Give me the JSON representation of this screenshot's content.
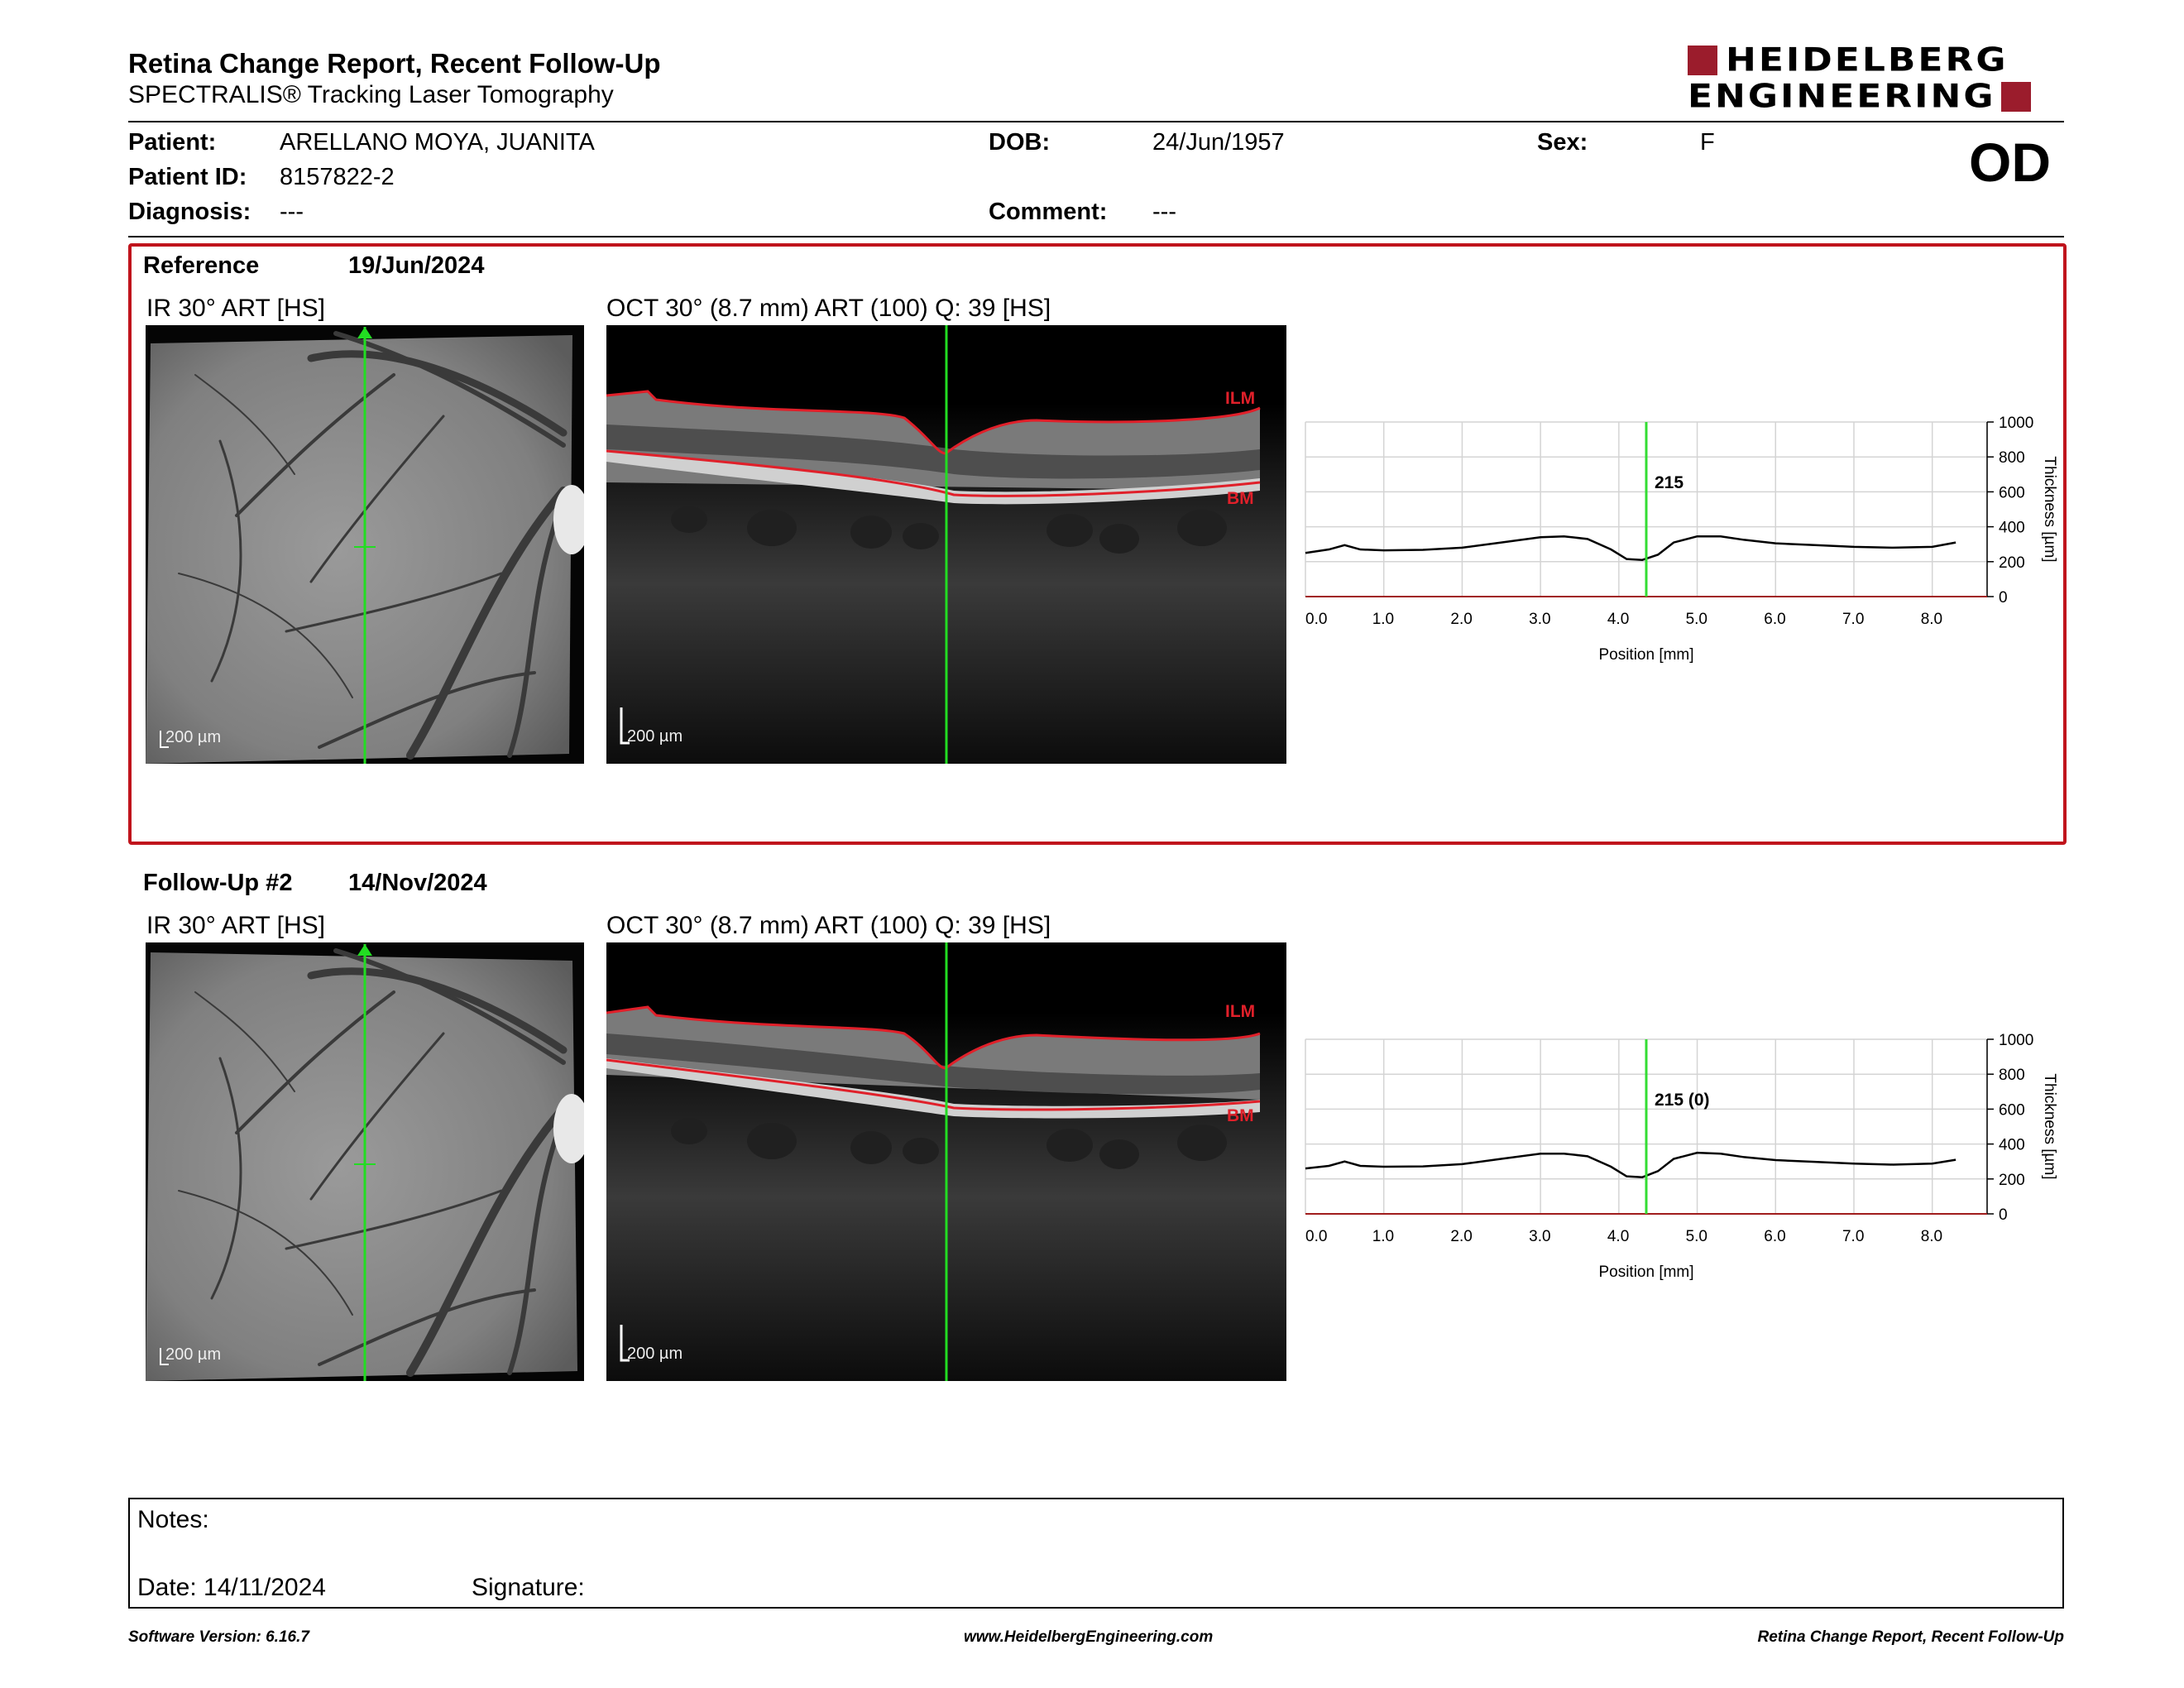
{
  "header": {
    "title": "Retina Change Report, Recent Follow-Up",
    "subtitle": "SPECTRALIS® Tracking Laser Tomography",
    "logo_line1": "HEIDELBERG",
    "logo_line2": "ENGINEERING",
    "brand_color": "#9b1c2c"
  },
  "patient": {
    "patient_label": "Patient:",
    "patient_value": "ARELLANO MOYA, JUANITA",
    "id_label": "Patient ID:",
    "id_value": "8157822-2",
    "diagnosis_label": "Diagnosis:",
    "diagnosis_value": "---",
    "dob_label": "DOB:",
    "dob_value": "24/Jun/1957",
    "comment_label": "Comment:",
    "comment_value": "---",
    "sex_label": "Sex:",
    "sex_value": "F",
    "eye": "OD"
  },
  "exams": [
    {
      "label": "Reference",
      "date": "19/Jun/2024",
      "ir_caption": "IR 30° ART [HS]",
      "oct_caption": "OCT 30° (8.7 mm) ART (100) Q: 39 [HS]",
      "ir_scale": "200 µm",
      "oct_scale": "200 µm",
      "ilm_label": "ILM",
      "bm_label": "BM",
      "marker_value": "215"
    },
    {
      "label": "Follow-Up #2",
      "date": "14/Nov/2024",
      "ir_caption": "IR 30° ART [HS]",
      "oct_caption": "OCT 30° (8.7 mm) ART (100) Q: 39 [HS]",
      "ir_scale": "200 µm",
      "oct_scale": "200 µm",
      "ilm_label": "ILM",
      "bm_label": "BM",
      "marker_value": "215 (0)"
    }
  ],
  "chart_data": [
    {
      "type": "line",
      "xlabel": "Position [mm]",
      "ylabel": "Thickness [µm]",
      "xlim": [
        0,
        8.7
      ],
      "ylim": [
        0,
        1000
      ],
      "x_ticks": [
        "0.0",
        "1.0",
        "2.0",
        "3.0",
        "4.0",
        "5.0",
        "6.0",
        "7.0",
        "8.0"
      ],
      "y_ticks": [
        "0",
        "200",
        "400",
        "600",
        "800",
        "1000"
      ],
      "marker_x": 4.35,
      "marker_label": "215",
      "x": [
        0,
        0.3,
        0.5,
        0.7,
        1.0,
        1.5,
        2.0,
        2.5,
        3.0,
        3.3,
        3.6,
        3.9,
        4.1,
        4.3,
        4.5,
        4.7,
        5.0,
        5.3,
        5.6,
        6.0,
        6.5,
        7.0,
        7.5,
        8.0,
        8.3
      ],
      "y": [
        250,
        270,
        295,
        270,
        265,
        268,
        280,
        310,
        340,
        345,
        330,
        270,
        215,
        210,
        240,
        310,
        345,
        345,
        325,
        305,
        295,
        285,
        280,
        285,
        310
      ],
      "grid": true,
      "line_color": "#000000",
      "marker_color": "#33dd33"
    },
    {
      "type": "line",
      "xlabel": "Position [mm]",
      "ylabel": "Thickness [µm]",
      "xlim": [
        0,
        8.7
      ],
      "ylim": [
        0,
        1000
      ],
      "x_ticks": [
        "0.0",
        "1.0",
        "2.0",
        "3.0",
        "4.0",
        "5.0",
        "6.0",
        "7.0",
        "8.0"
      ],
      "y_ticks": [
        "0",
        "200",
        "400",
        "600",
        "800",
        "1000"
      ],
      "marker_x": 4.35,
      "marker_label": "215 (0)",
      "x": [
        0,
        0.3,
        0.5,
        0.7,
        1.0,
        1.5,
        2.0,
        2.5,
        3.0,
        3.3,
        3.6,
        3.9,
        4.1,
        4.3,
        4.5,
        4.7,
        5.0,
        5.3,
        5.6,
        6.0,
        6.5,
        7.0,
        7.5,
        8.0,
        8.3
      ],
      "y": [
        260,
        275,
        300,
        275,
        270,
        272,
        285,
        315,
        345,
        345,
        330,
        270,
        215,
        210,
        245,
        315,
        350,
        345,
        325,
        308,
        298,
        288,
        282,
        288,
        310
      ],
      "grid": true,
      "line_color": "#000000",
      "marker_color": "#33dd33"
    }
  ],
  "notes": {
    "notes_label": "Notes:",
    "date_label": "Date: 14/11/2024",
    "signature_label": "Signature:"
  },
  "footer": {
    "software": "Software Version: 6.16.7",
    "website": "www.HeidelbergEngineering.com",
    "report_name": "Retina Change Report, Recent Follow-Up"
  }
}
